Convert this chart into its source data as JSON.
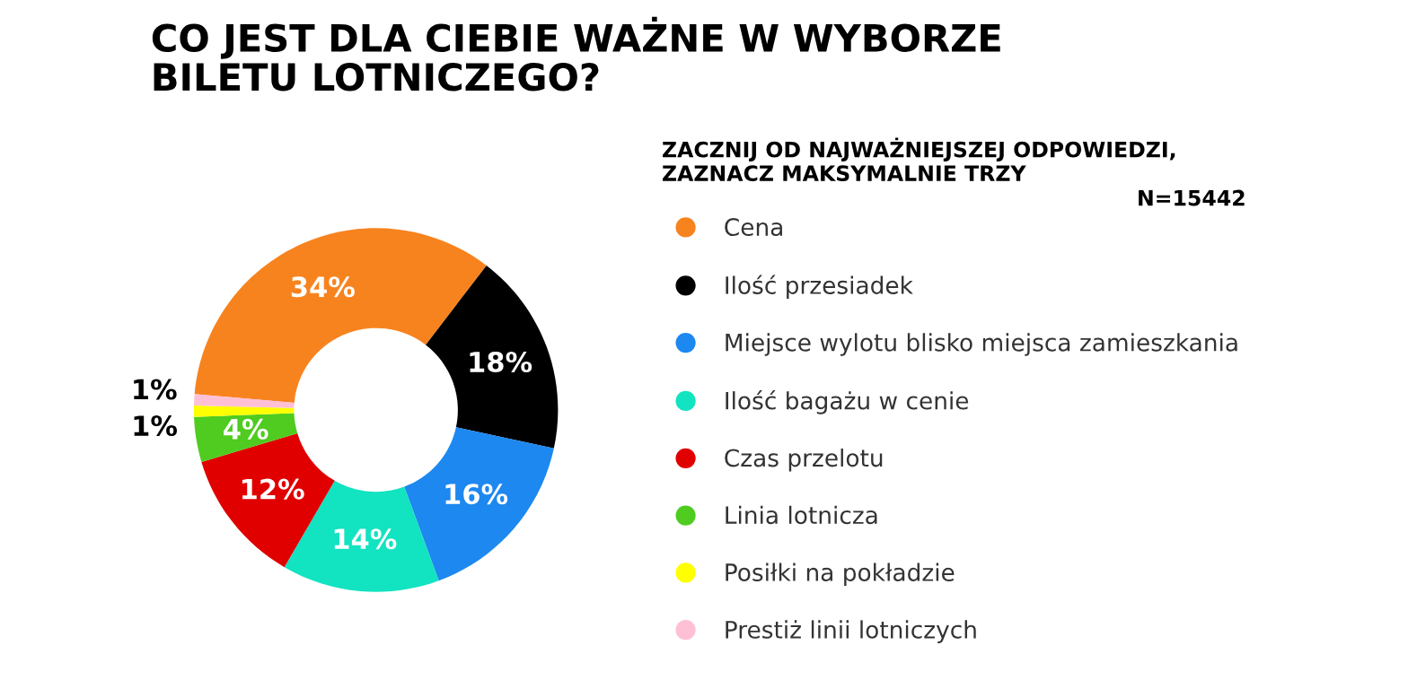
{
  "chart_data": {
    "type": "donut",
    "title": "CO JEST DLA CIEBIE WAŻNE W WYBORZE\nBILETU LOTNICZEGO?",
    "subtitle": "ZACZNIJ OD NAJWAŻNIEJSZEJ ODPOWIEDZI,\nZAZNACZ MAKSYMALNIE TRZY",
    "annotations": [
      "N=15442"
    ],
    "categories": [
      "Cena",
      "Ilość przesiadek",
      "Miejsce wylotu blisko miejsca zamieszkania",
      "Ilość bagażu w cenie",
      "Czas przelotu",
      "Linia lotnicza",
      "Posiłki na pokładzie",
      "Prestiż linii lotniczych"
    ],
    "values": [
      34,
      18,
      16,
      14,
      12,
      4,
      1,
      1
    ],
    "colors": [
      "#f7831f",
      "#000000",
      "#1c88f0",
      "#12e3c1",
      "#e00000",
      "#4fcc1f",
      "#ffff00",
      "#ffc0d6"
    ],
    "value_labels": [
      "34%",
      "18%",
      "16%",
      "14%",
      "12%",
      "4%",
      "1%",
      "1%"
    ],
    "legend": "right"
  }
}
